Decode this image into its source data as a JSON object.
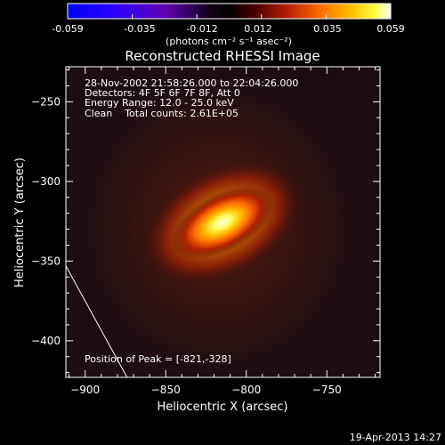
{
  "colorbar": {
    "min": -0.059,
    "max": 0.059,
    "ticks": [
      "-0.059",
      "-0.035",
      "-0.012",
      "0.012",
      "0.035",
      "0.059"
    ],
    "unit_label": "(photons cm⁻² s⁻¹ asec⁻²)",
    "colors": [
      "#0000ff",
      "#2000ff",
      "#5a00c8",
      "#000000",
      "#3a0000",
      "#a01800",
      "#ff5a00",
      "#ffb400",
      "#ffff00",
      "#ffffff"
    ]
  },
  "title": "Reconstructed RHESSI Image",
  "info_lines": [
    "28-Nov-2002 21:58:26.000 to 22:04:26.000",
    "Detectors: 4F 5F 6F 7F 8F, Att 0",
    "Energy Range: 12.0 - 25.0 keV",
    "Clean    Total counts: 2.61E+05"
  ],
  "peak_text": "Position of Peak = [-821,-328]",
  "footer_date": "19-Apr-2013 14:27",
  "chart_data": {
    "type": "heatmap",
    "title": "Reconstructed RHESSI Image",
    "xlabel": "Heliocentric X (arcsec)",
    "ylabel": "Heliocentric Y (arcsec)",
    "xlim": [
      -912,
      -717
    ],
    "ylim": [
      -423,
      -228
    ],
    "x_ticks": [
      -900,
      -850,
      -800,
      -750
    ],
    "x_tick_labels": [
      "−900",
      "−850",
      "−800",
      "−750"
    ],
    "y_ticks": [
      -250,
      -300,
      -350,
      -400
    ],
    "y_tick_labels": [
      "−250",
      "−300",
      "−350",
      "−400"
    ],
    "peak_position": [
      -821,
      -328
    ],
    "limb_line": [
      [
        -912,
        -353
      ],
      [
        -874,
        -423
      ]
    ]
  }
}
